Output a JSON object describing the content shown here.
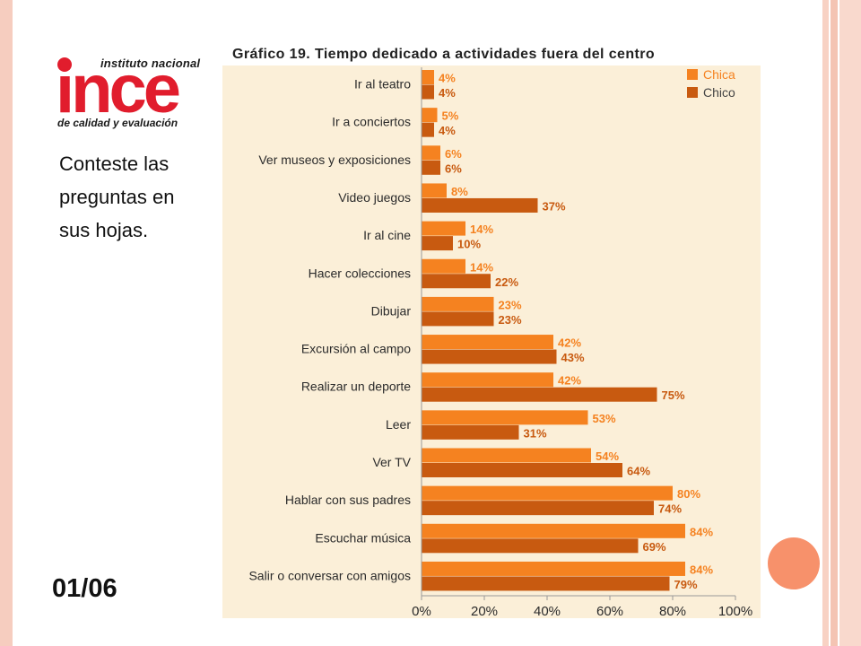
{
  "logo": {
    "top_text": "instituto nacional",
    "main_text": "ince",
    "bottom_text": "de calidad y evaluación"
  },
  "instructions": [
    "Conteste las",
    "preguntas en",
    "sus hojas."
  ],
  "page_number": "01/06",
  "colors": {
    "chica": "#f58220",
    "chico": "#c85a10",
    "background": "#fbefd8",
    "circle": "#f7916b"
  },
  "chart_data": {
    "type": "bar",
    "orientation": "horizontal",
    "title": "Gráfico 19. Tiempo dedicado a actividades fuera del centro",
    "categories": [
      "Ir al teatro",
      "Ir a conciertos",
      "Ver museos y exposiciones",
      "Video juegos",
      "Ir al cine",
      "Hacer colecciones",
      "Dibujar",
      "Excursión al campo",
      "Realizar un deporte",
      "Leer",
      "Ver TV",
      "Hablar con sus padres",
      "Escuchar música",
      "Salir o conversar con amigos"
    ],
    "series": [
      {
        "name": "Chica",
        "values": [
          4,
          5,
          6,
          8,
          14,
          14,
          23,
          42,
          42,
          53,
          54,
          80,
          84,
          84
        ]
      },
      {
        "name": "Chico",
        "values": [
          4,
          4,
          6,
          37,
          10,
          22,
          23,
          43,
          75,
          31,
          64,
          74,
          69,
          79
        ]
      }
    ],
    "xticks": [
      "0%",
      "20%",
      "40%",
      "60%",
      "80%",
      "100%"
    ],
    "xlim": [
      0,
      100
    ],
    "legend_position": "top-right",
    "grid": false
  }
}
